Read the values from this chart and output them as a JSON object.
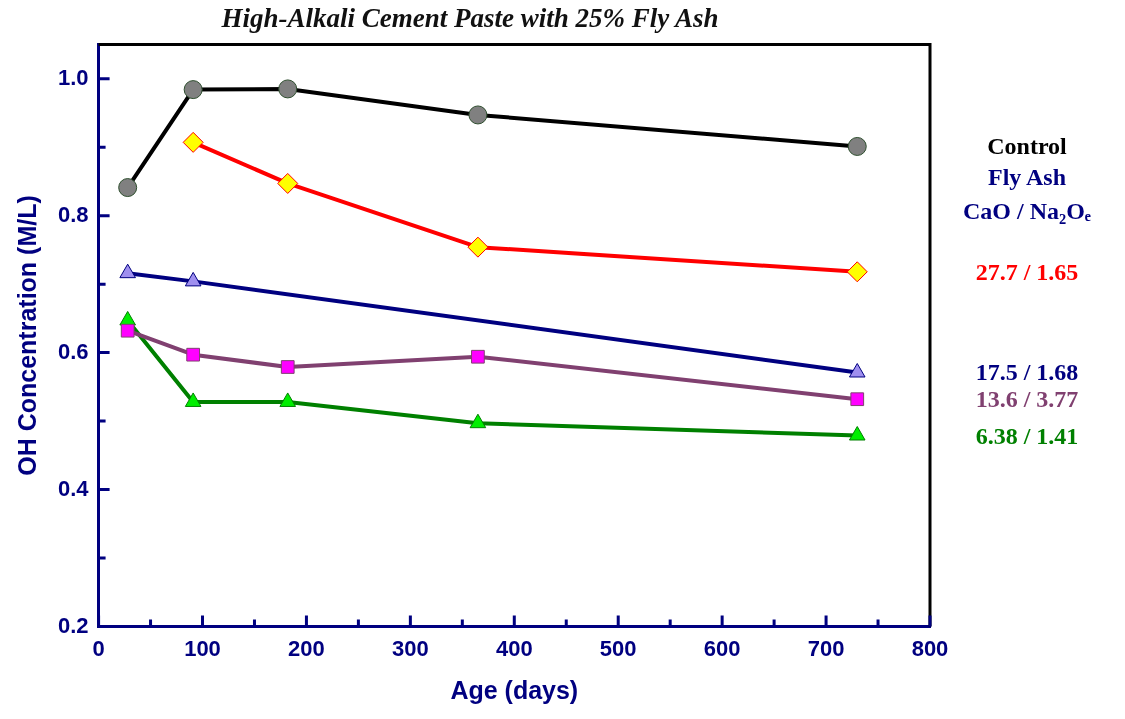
{
  "chart_data": {
    "type": "line",
    "title": "High-Alkali Cement Paste with 25% Fly Ash",
    "xlabel": "Age (days)",
    "ylabel": "OH Concentration (M/L)",
    "legend_title": "Fly Ash\nCaO / Na₂Oₑ",
    "legend": "right",
    "grid": false,
    "line_style": "solid",
    "xlim": [
      0,
      800
    ],
    "xticks": [
      0,
      {
        "value": 50,
        "label": null
      },
      100,
      {
        "value": 150,
        "label": null
      },
      200,
      {
        "value": 250,
        "label": null
      },
      300,
      {
        "value": 350,
        "label": null
      },
      400,
      {
        "value": 450,
        "label": null
      },
      500,
      {
        "value": 550,
        "label": null
      },
      600,
      {
        "value": 650,
        "label": null
      },
      700,
      {
        "value": 750,
        "label": null
      },
      800
    ],
    "ylim": [
      0.2,
      1.05
    ],
    "yticks": [
      0.2,
      {
        "value": 0.3,
        "label": null
      },
      0.4,
      {
        "value": 0.5,
        "label": null
      },
      0.6,
      {
        "value": 0.7,
        "label": null
      },
      0.8,
      {
        "value": 0.9,
        "label": null
      },
      {
        "value": 1,
        "label": "1.0"
      }
    ],
    "series": [
      {
        "name": "Control",
        "color": "#000000",
        "marker": "circle",
        "x": [
          28,
          91,
          182,
          365,
          730
        ],
        "values": [
          0.841,
          0.984,
          0.985,
          0.947,
          0.901
        ]
      },
      {
        "name": "27.7 / 1.65",
        "color": "#ff0000",
        "marker": "diamond",
        "x": [
          91,
          182,
          365,
          730
        ],
        "values": [
          0.907,
          0.847,
          0.754,
          0.718
        ]
      },
      {
        "name": "17.5 / 1.68",
        "color": "#000080",
        "marker": "triangle",
        "x": [
          28,
          91,
          730
        ],
        "values": [
          0.716,
          0.704,
          0.571
        ]
      },
      {
        "name": "13.6 / 3.77",
        "color": "#804070",
        "marker": "square",
        "x": [
          28,
          91,
          182,
          365,
          730
        ],
        "values": [
          0.632,
          0.597,
          0.579,
          0.594,
          0.532
        ]
      },
      {
        "name": "6.38 / 1.41",
        "color": "#008000",
        "marker": "triangle",
        "x": [
          28,
          91,
          182,
          365,
          730
        ],
        "values": [
          0.647,
          0.528,
          0.528,
          0.497,
          0.479
        ]
      }
    ]
  }
}
